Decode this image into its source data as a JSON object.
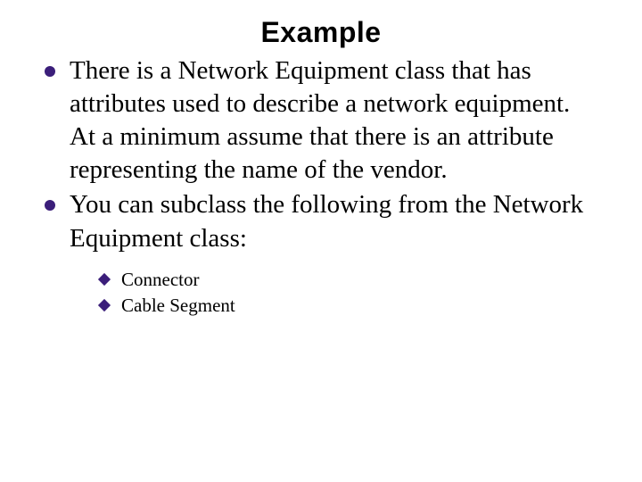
{
  "colors": {
    "bullet": "#3b1e7a",
    "text": "#000000",
    "background": "#ffffff"
  },
  "title": {
    "text": "Example",
    "font_family": "Arial",
    "font_weight": 900,
    "font_size_pt": 24
  },
  "body": {
    "font_family": "Times New Roman",
    "font_size_pt": 22,
    "items": [
      "There is a  Network Equipment class that has attributes used to describe a network equipment.  At a minimum assume that there is an attribute representing the name of the vendor.",
      "You can subclass the following from the Network Equipment class:"
    ]
  },
  "sub": {
    "font_size_pt": 16,
    "items": [
      "Connector",
      "Cable Segment"
    ]
  }
}
